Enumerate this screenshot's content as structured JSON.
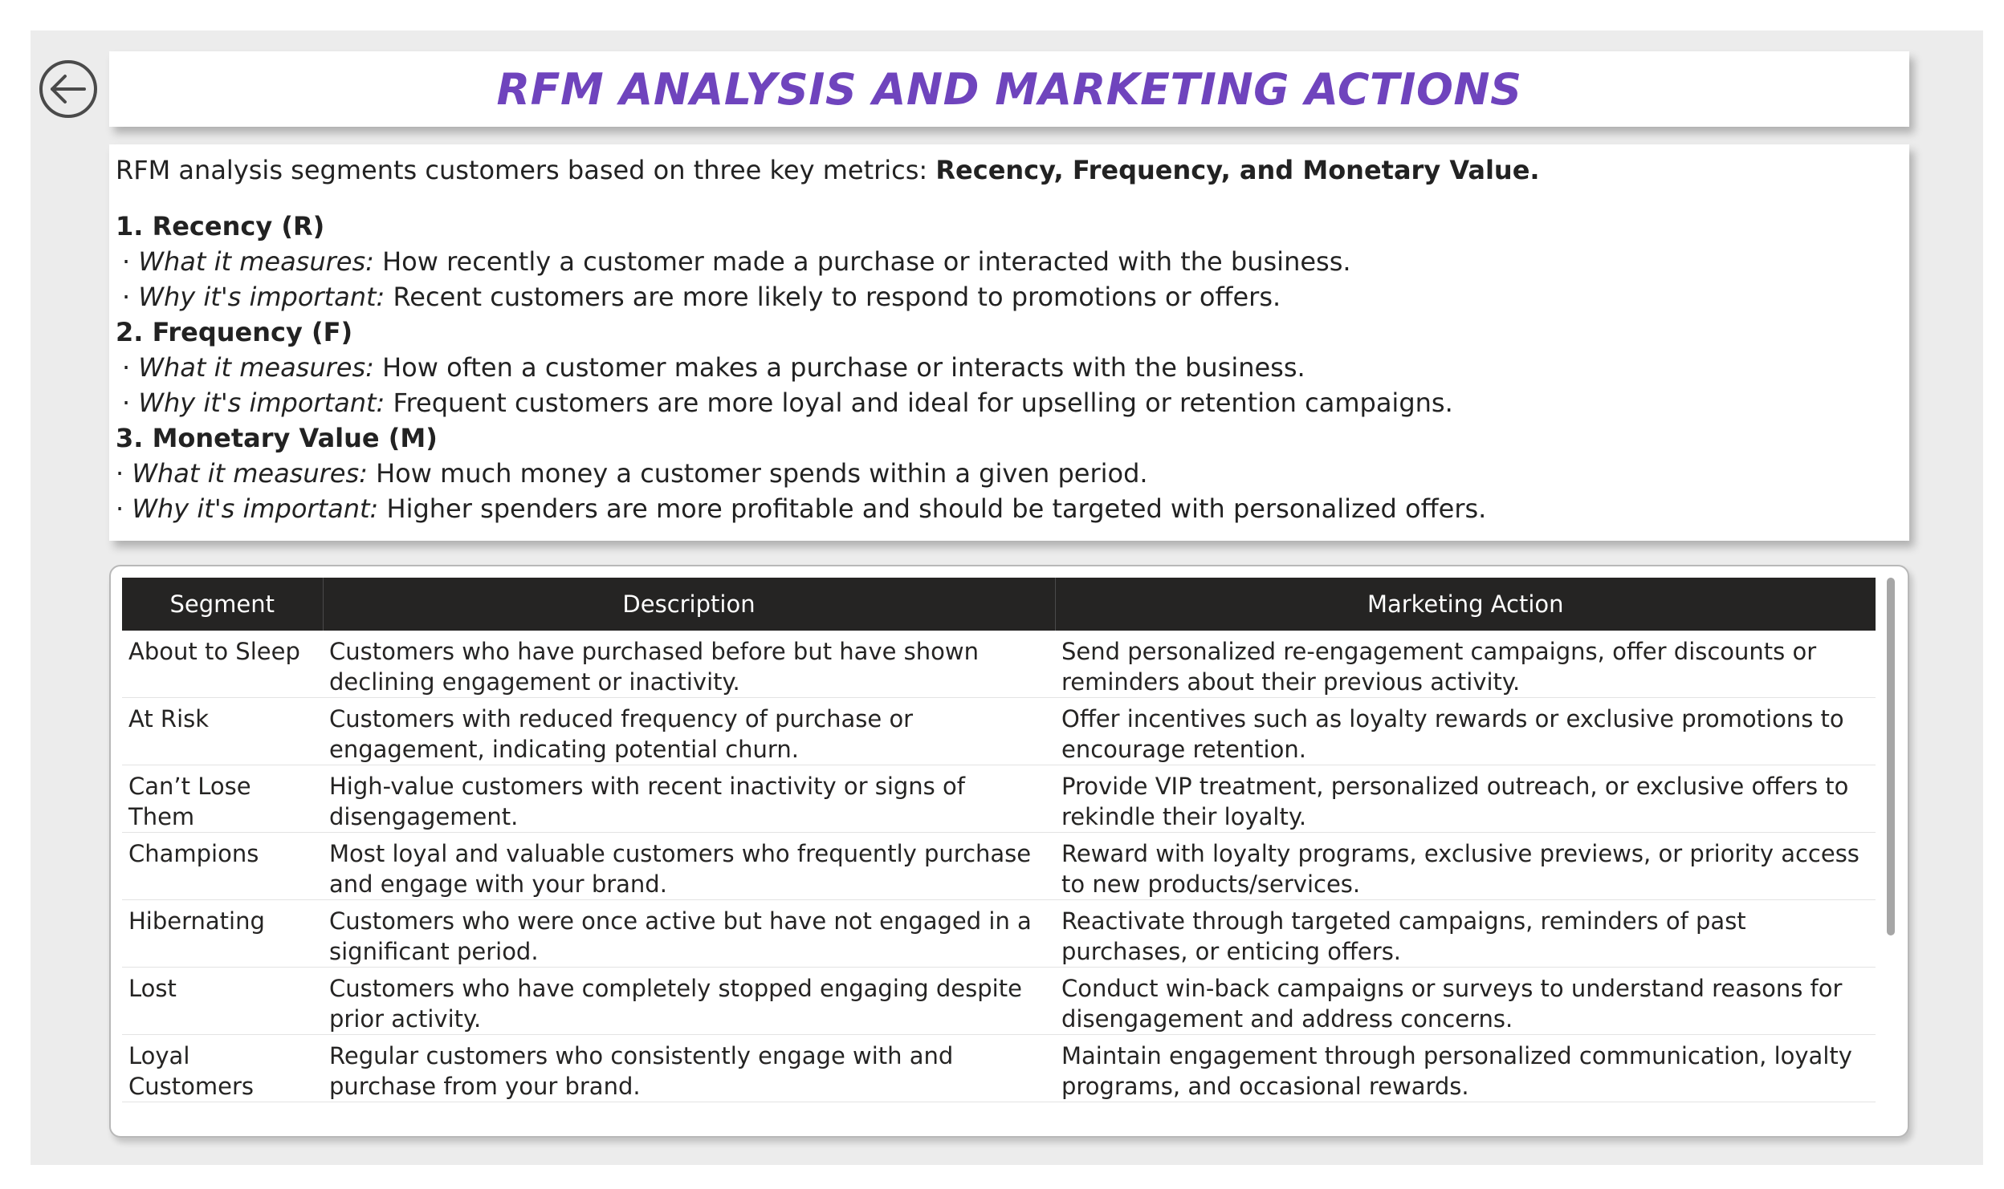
{
  "title": "RFM ANALYSIS AND MARKETING ACTIONS",
  "intro": {
    "text": "RFM analysis segments customers based on three key metrics: ",
    "bold": "Recency, Frequency, and Monetary Value."
  },
  "metrics": [
    {
      "heading": "1. Recency (R)",
      "measures_label": "What it measures:",
      "measures_text": " How recently a customer made a purchase or interacted with the business.",
      "important_label": "Why it's important:",
      "important_text": " Recent customers are more likely to respond to promotions or offers."
    },
    {
      "heading": "2. Frequency (F)",
      "measures_label": "What it measures:",
      "measures_text": " How often a customer makes a purchase or interacts with the business.",
      "important_label": "Why it's important:",
      "important_text": " Frequent customers are more loyal and ideal for upselling or retention campaigns."
    },
    {
      "heading": "3. Monetary Value (M)",
      "measures_label": "What it measures:",
      "measures_text": " How much money a customer spends within a given period.",
      "important_label": "Why it's important:",
      "important_text": " Higher spenders are more profitable and should be targeted with personalized offers."
    }
  ],
  "table": {
    "headers": [
      "Segment",
      "Description",
      "Marketing Action"
    ],
    "rows": [
      [
        "About to Sleep",
        "Customers who have purchased before but have shown declining engagement or inactivity.",
        "Send personalized re-engagement campaigns, offer discounts or reminders about their previous activity."
      ],
      [
        "At Risk",
        "Customers with reduced frequency of purchase or engagement, indicating potential churn.",
        "Offer incentives such as loyalty rewards or exclusive promotions to encourage retention."
      ],
      [
        "Can’t Lose Them",
        "High-value customers with recent inactivity or signs of disengagement.",
        "Provide VIP treatment, personalized outreach, or exclusive offers to rekindle their loyalty."
      ],
      [
        "Champions",
        "Most loyal and valuable customers who frequently purchase and engage with your brand.",
        "Reward with loyalty programs, exclusive previews, or priority access to new products/services."
      ],
      [
        "Hibernating",
        "Customers who were once active but have not engaged in a significant period.",
        "Reactivate through targeted campaigns, reminders of past purchases, or enticing offers."
      ],
      [
        "Lost",
        "Customers who have completely stopped engaging despite prior activity.",
        "Conduct win-back campaigns or surveys to understand reasons for disengagement and address concerns."
      ],
      [
        "Loyal Customers",
        "Regular customers who consistently engage with and purchase from your brand.",
        "Maintain engagement through personalized communication, loyalty programs, and occasional rewards."
      ]
    ]
  },
  "icons": {
    "back": "back-arrow-icon"
  },
  "colors": {
    "title": "#6f44bd",
    "header_bg": "#252423",
    "canvas_bg": "#ececec"
  }
}
